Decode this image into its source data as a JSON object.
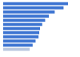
{
  "chart_data": {
    "type": "bar",
    "orientation": "horizontal",
    "categories": [
      null,
      null,
      null,
      null,
      null,
      null,
      null,
      null,
      null,
      null,
      null,
      null
    ],
    "values": [
      88,
      82,
      70,
      62,
      57,
      53,
      50,
      49,
      48,
      44,
      40,
      36
    ],
    "colors": [
      "#3b73d1",
      "#3b73d1",
      "#3b73d1",
      "#3b73d1",
      "#3b73d1",
      "#3b73d1",
      "#3b73d1",
      "#3b73d1",
      "#3b73d1",
      "#3b73d1",
      "#3b73d1",
      "#b9c6de"
    ],
    "xlim": [
      0,
      100
    ],
    "grid": false,
    "tick_labels": false
  }
}
